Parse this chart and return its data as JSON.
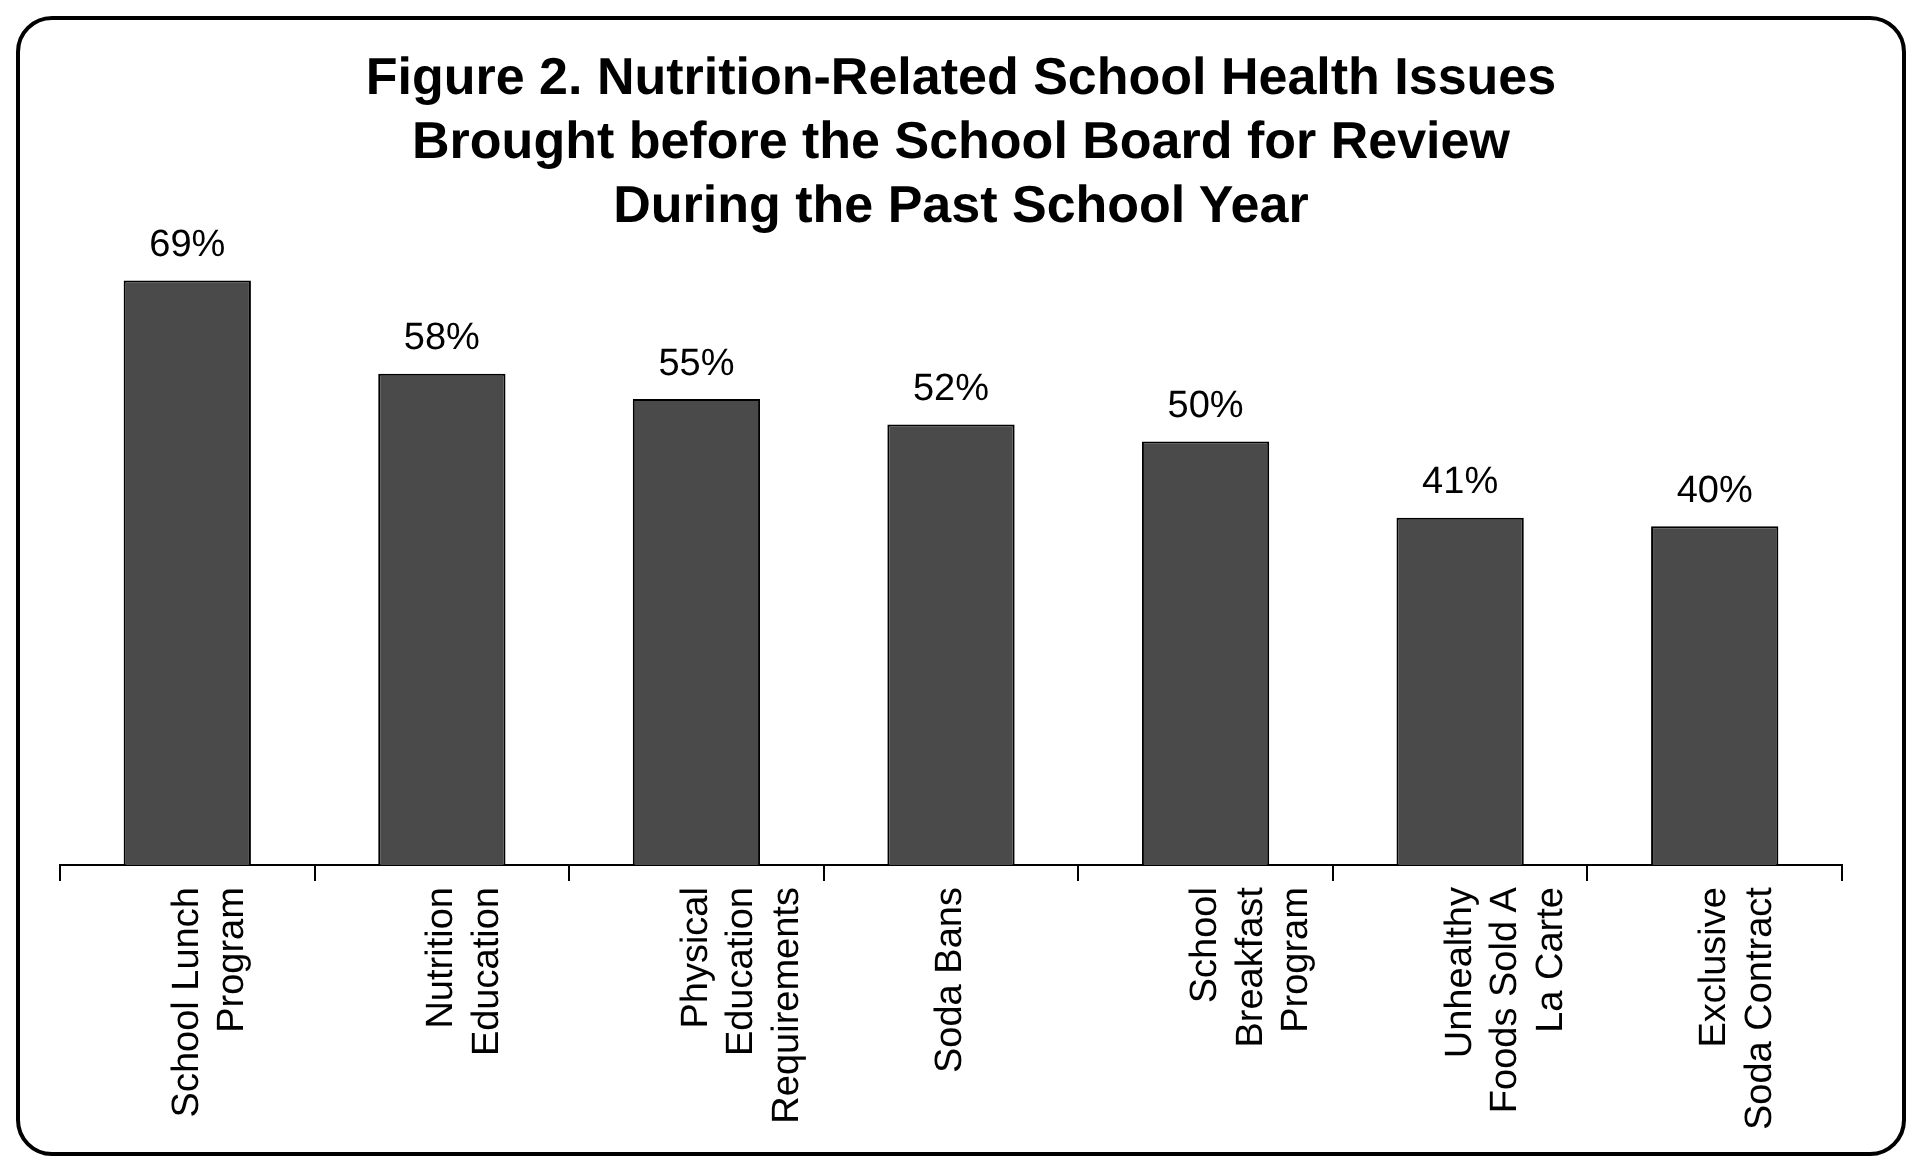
{
  "chart_data": {
    "type": "bar",
    "title": "Figure 2. Nutrition-Related School Health Issues Brought before the School Board for Review During the Past School Year",
    "categories": [
      "School Lunch Program",
      "Nutrition Education",
      "Physical Education Requirements",
      "Soda Bans",
      "School Breakfast Program",
      "Unhealthy Foods Sold A La Carte",
      "Exclusive Soda Contract"
    ],
    "values": [
      69,
      58,
      55,
      52,
      50,
      41,
      40
    ],
    "value_labels": [
      "69%",
      "58%",
      "55%",
      "52%",
      "50%",
      "41%",
      "40%"
    ],
    "color": "#4a4a4a",
    "grid": false,
    "legend": false
  }
}
